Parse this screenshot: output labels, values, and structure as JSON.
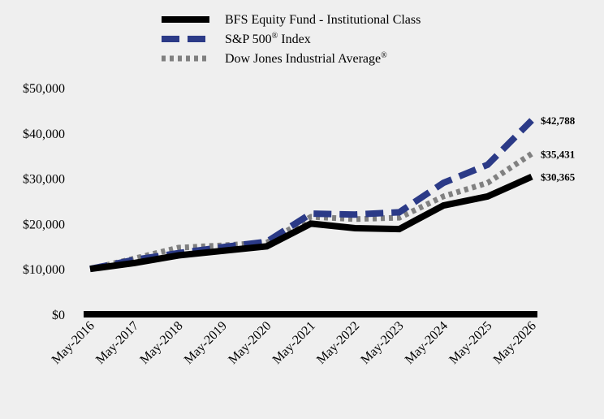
{
  "chart_data": {
    "type": "line",
    "title": "",
    "xlabel": "",
    "ylabel": "",
    "x": [
      "May-2016",
      "May-2017",
      "May-2018",
      "May-2019",
      "May-2020",
      "May-2021",
      "May-2022",
      "May-2023",
      "May-2024",
      "May-2025",
      "May-2026"
    ],
    "ylim": [
      0,
      50000
    ],
    "yticks": [
      0,
      10000,
      20000,
      30000,
      40000,
      50000
    ],
    "ytick_labels": [
      "$0",
      "$10,000",
      "$20,000",
      "$30,000",
      "$40,000",
      "$50,000"
    ],
    "grid": false,
    "legend_position": "top-center",
    "series": [
      {
        "name": "BFS Equity Fund - Institutional Class",
        "color": "#000000",
        "style": "solid",
        "values": [
          10000,
          11300,
          13000,
          14000,
          15000,
          20000,
          19000,
          18800,
          24000,
          26000,
          30365
        ],
        "end_label": "$30,365"
      },
      {
        "name": "S&P 500",
        "name_sup": "®",
        "name_suffix": " Index",
        "color": "#2b3a87",
        "style": "dashed",
        "values": [
          10000,
          12000,
          13500,
          14800,
          16000,
          22200,
          22000,
          22500,
          29000,
          33000,
          42788
        ],
        "end_label": "$42,788"
      },
      {
        "name": "Dow Jones Industrial Average",
        "name_sup": "®",
        "name_suffix": "",
        "color": "#808080",
        "style": "dotted",
        "values": [
          10000,
          12300,
          14700,
          15200,
          15800,
          21500,
          21000,
          21300,
          26000,
          29000,
          35431
        ],
        "end_label": "$35,431"
      }
    ]
  }
}
